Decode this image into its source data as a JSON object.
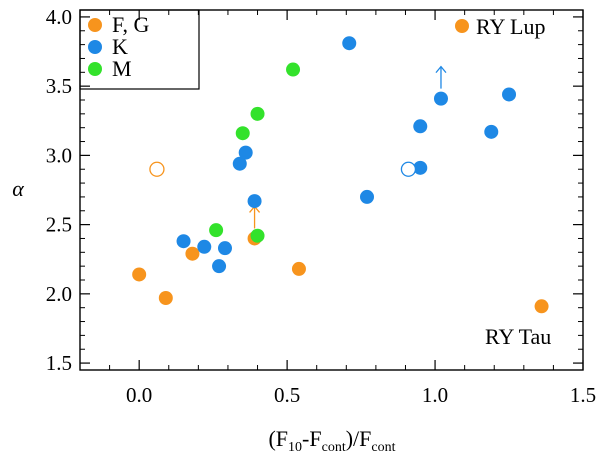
{
  "chart_data": {
    "type": "scatter",
    "title": "",
    "xlabel": "(F10-Fcont)/Fcont",
    "xlabel_parts": {
      "open": "(F",
      "sub1": "10",
      "mid": "-F",
      "sub2": "cont",
      "close": ")/F",
      "sub3": "cont"
    },
    "ylabel": "α",
    "xlim": [
      -0.2,
      1.5
    ],
    "ylim": [
      1.45,
      4.05
    ],
    "xticks": [
      0.0,
      0.5,
      1.0,
      1.5
    ],
    "xtick_labels": [
      "0.0",
      "0.5",
      "1.0",
      "1.5"
    ],
    "yticks": [
      1.5,
      2.0,
      2.5,
      3.0,
      3.5,
      4.0
    ],
    "ytick_labels": [
      "1.5",
      "2.0",
      "2.5",
      "3.0",
      "3.5",
      "4.0"
    ],
    "minor_xticks": [
      -0.1,
      0.1,
      0.2,
      0.3,
      0.4,
      0.6,
      0.7,
      0.8,
      0.9,
      1.1,
      1.2,
      1.3,
      1.4
    ],
    "minor_yticks": [
      1.6,
      1.7,
      1.8,
      1.9,
      2.1,
      2.2,
      2.3,
      2.4,
      2.6,
      2.7,
      2.8,
      2.9,
      3.1,
      3.2,
      3.3,
      3.4,
      3.6,
      3.7,
      3.8,
      3.9
    ],
    "grid": false,
    "legend_position": "top-left",
    "series": [
      {
        "name": "F, G",
        "color": "#F7941D",
        "points": [
          {
            "x": 0.0,
            "y": 2.14
          },
          {
            "x": 0.09,
            "y": 1.97
          },
          {
            "x": 0.18,
            "y": 2.29
          },
          {
            "x": 0.39,
            "y": 2.4
          },
          {
            "x": 0.54,
            "y": 2.18
          },
          {
            "x": 1.36,
            "y": 1.91
          },
          {
            "x": 0.06,
            "y": 2.9,
            "open": true
          },
          {
            "x": 0.39,
            "y": 2.4,
            "arrow": "up"
          }
        ]
      },
      {
        "name": "K",
        "color": "#1E88E5",
        "points": [
          {
            "x": 0.15,
            "y": 2.38
          },
          {
            "x": 0.22,
            "y": 2.34
          },
          {
            "x": 0.27,
            "y": 2.2
          },
          {
            "x": 0.29,
            "y": 2.33
          },
          {
            "x": 0.34,
            "y": 2.94
          },
          {
            "x": 0.36,
            "y": 3.02
          },
          {
            "x": 0.39,
            "y": 2.67
          },
          {
            "x": 0.71,
            "y": 3.81
          },
          {
            "x": 0.77,
            "y": 2.7
          },
          {
            "x": 0.95,
            "y": 3.21
          },
          {
            "x": 0.95,
            "y": 2.91
          },
          {
            "x": 1.02,
            "y": 3.41
          },
          {
            "x": 1.19,
            "y": 3.17
          },
          {
            "x": 1.25,
            "y": 3.44
          },
          {
            "x": 0.91,
            "y": 2.9,
            "open": true
          },
          {
            "x": 1.02,
            "y": 3.41,
            "arrow": "up"
          }
        ]
      },
      {
        "name": "M",
        "color": "#33E22B",
        "points": [
          {
            "x": 0.26,
            "y": 2.46
          },
          {
            "x": 0.35,
            "y": 3.16
          },
          {
            "x": 0.4,
            "y": 3.3
          },
          {
            "x": 0.4,
            "y": 2.42
          },
          {
            "x": 0.52,
            "y": 3.62
          }
        ]
      }
    ],
    "annotations": [
      {
        "text": "RY Lup",
        "marker_color": "#F7941D",
        "position": "top-right"
      },
      {
        "text": "RY Tau",
        "marker_color": "",
        "position": "bottom-right"
      }
    ]
  }
}
